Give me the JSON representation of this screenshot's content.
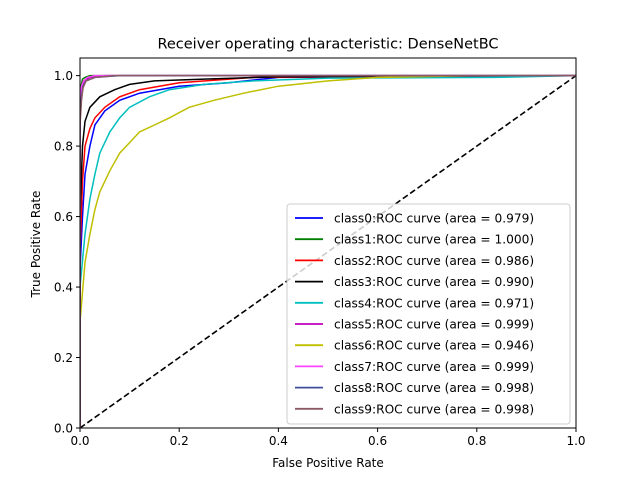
{
  "chart_data": {
    "type": "line",
    "title": "Receiver operating characteristic: DenseNetBC",
    "xlabel": "False Positive Rate",
    "ylabel": "True Positive Rate",
    "xlim": [
      0.0,
      1.0
    ],
    "ylim": [
      0.0,
      1.05
    ],
    "xticks": [
      0.0,
      0.2,
      0.4,
      0.6,
      0.8,
      1.0
    ],
    "yticks": [
      0.0,
      0.2,
      0.4,
      0.6,
      0.8,
      1.0
    ],
    "xtick_labels": [
      "0.0",
      "0.2",
      "0.4",
      "0.6",
      "0.8",
      "1.0"
    ],
    "ytick_labels": [
      "0.0",
      "0.2",
      "0.4",
      "0.6",
      "0.8",
      "1.0"
    ],
    "grid": false,
    "legend_position": "lower-right",
    "diagonal": {
      "x": [
        0,
        1
      ],
      "y": [
        0,
        1
      ],
      "style": "dashed",
      "color": "#000000"
    },
    "series": [
      {
        "name": "class0:ROC curve (area = 0.979)",
        "color": "#0000ff",
        "x": [
          0,
          0,
          0.005,
          0.01,
          0.02,
          0.03,
          0.05,
          0.08,
          0.12,
          0.2,
          0.3,
          0.4,
          1.0
        ],
        "y": [
          0,
          0.45,
          0.6,
          0.72,
          0.8,
          0.86,
          0.9,
          0.93,
          0.95,
          0.97,
          0.98,
          0.995,
          1.0
        ]
      },
      {
        "name": "class1:ROC curve (area = 1.000)",
        "color": "#008000",
        "x": [
          0,
          0,
          0.002,
          0.005,
          0.01,
          0.02,
          1.0
        ],
        "y": [
          0,
          0.9,
          0.97,
          0.99,
          0.995,
          1.0,
          1.0
        ]
      },
      {
        "name": "class2:ROC curve (area = 0.986)",
        "color": "#ff0000",
        "x": [
          0,
          0,
          0.005,
          0.01,
          0.02,
          0.03,
          0.05,
          0.08,
          0.12,
          0.2,
          0.35,
          1.0
        ],
        "y": [
          0,
          0.5,
          0.7,
          0.8,
          0.85,
          0.88,
          0.91,
          0.94,
          0.96,
          0.98,
          0.995,
          1.0
        ]
      },
      {
        "name": "class3:ROC curve (area = 0.990)",
        "color": "#000000",
        "x": [
          0,
          0,
          0.005,
          0.01,
          0.02,
          0.04,
          0.07,
          0.1,
          0.15,
          0.25,
          0.4,
          1.0
        ],
        "y": [
          0,
          0.6,
          0.8,
          0.87,
          0.91,
          0.94,
          0.96,
          0.975,
          0.985,
          0.99,
          0.997,
          1.0
        ]
      },
      {
        "name": "class4:ROC curve (area = 0.971)",
        "color": "#00bfbf",
        "x": [
          0,
          0,
          0.01,
          0.02,
          0.03,
          0.04,
          0.06,
          0.08,
          0.1,
          0.14,
          0.18,
          0.25,
          0.35,
          0.5,
          0.84,
          1.0
        ],
        "y": [
          0,
          0.4,
          0.55,
          0.65,
          0.72,
          0.78,
          0.84,
          0.88,
          0.91,
          0.94,
          0.96,
          0.975,
          0.985,
          0.993,
          0.995,
          1.0
        ]
      },
      {
        "name": "class5:ROC curve (area = 0.999)",
        "color": "#bf00bf",
        "x": [
          0,
          0,
          0.003,
          0.008,
          0.02,
          0.05,
          1.0
        ],
        "y": [
          0,
          0.9,
          0.96,
          0.985,
          0.995,
          1.0,
          1.0
        ]
      },
      {
        "name": "class6:ROC curve (area = 0.946)",
        "color": "#bfbf00",
        "x": [
          0,
          0,
          0.01,
          0.02,
          0.03,
          0.04,
          0.06,
          0.08,
          0.1,
          0.12,
          0.15,
          0.18,
          0.22,
          0.27,
          0.33,
          0.4,
          0.5,
          0.6,
          0.8,
          1.0
        ],
        "y": [
          0,
          0.3,
          0.47,
          0.55,
          0.62,
          0.67,
          0.73,
          0.78,
          0.81,
          0.84,
          0.86,
          0.88,
          0.91,
          0.93,
          0.95,
          0.97,
          0.985,
          0.995,
          1.0,
          1.0
        ]
      },
      {
        "name": "class7:ROC curve (area = 0.999)",
        "color": "#ff44ff",
        "x": [
          0,
          0,
          0.003,
          0.007,
          0.015,
          0.03,
          1.0
        ],
        "y": [
          0,
          0.92,
          0.97,
          0.985,
          0.995,
          1.0,
          1.0
        ]
      },
      {
        "name": "class8:ROC curve (area = 0.998)",
        "color": "#404f9a",
        "x": [
          0,
          0,
          0.003,
          0.006,
          0.012,
          0.03,
          0.08,
          1.0
        ],
        "y": [
          0,
          0.88,
          0.94,
          0.97,
          0.985,
          0.995,
          1.0,
          1.0
        ]
      },
      {
        "name": "class9:ROC curve (area = 0.998)",
        "color": "#8c5a64",
        "x": [
          0,
          0,
          0.003,
          0.006,
          0.012,
          0.03,
          0.07,
          1.0
        ],
        "y": [
          0,
          0.86,
          0.93,
          0.965,
          0.985,
          0.995,
          1.0,
          1.0
        ]
      }
    ]
  }
}
